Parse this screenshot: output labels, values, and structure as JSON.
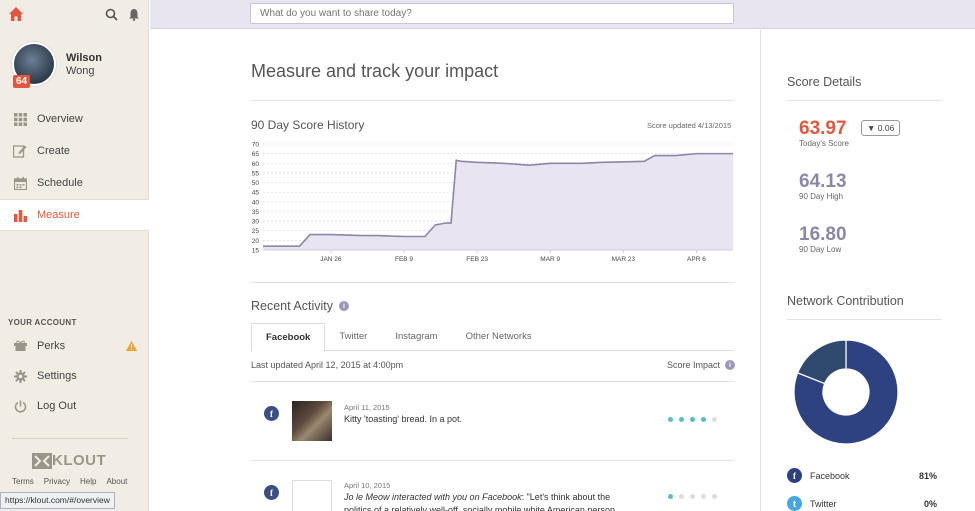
{
  "colors": {
    "accent": "#e2583e",
    "chart_fill": "#e5e1f0",
    "chart_line": "#8d87a6",
    "score_muted": "#8d87a6",
    "facebook": "#2e4282",
    "twitter": "#47a6e0",
    "impact_dot": "#53c0c2"
  },
  "sidebar": {
    "user": {
      "first_name": "Wilson",
      "last_name": "Wong",
      "score_badge": "64"
    },
    "nav": [
      {
        "label": "Overview",
        "icon": "grid-icon"
      },
      {
        "label": "Create",
        "icon": "pencil-icon"
      },
      {
        "label": "Schedule",
        "icon": "calendar-icon"
      },
      {
        "label": "Measure",
        "icon": "bar-chart-icon"
      }
    ],
    "account_title": "YOUR ACCOUNT",
    "account_items": [
      {
        "label": "Perks",
        "icon": "perks-icon"
      },
      {
        "label": "Settings",
        "icon": "gear-icon"
      },
      {
        "label": "Log Out",
        "icon": "power-icon"
      }
    ],
    "logo_text": "KLOUT",
    "footer_links": [
      "Terms",
      "Privacy",
      "Help",
      "About"
    ]
  },
  "status_url": "https://klout.com/#/overview",
  "topbar": {
    "share_placeholder": "What do you want to share today?"
  },
  "main": {
    "title": "Measure and track your impact",
    "chart_title": "90 Day Score History",
    "score_updated": "Score updated 4/13/2015",
    "recent_activity_title": "Recent Activity",
    "info_glyph": "i",
    "tabs": [
      "Facebook",
      "Twitter",
      "Instagram",
      "Other Networks"
    ],
    "last_updated": "Last updated April 12, 2015 at 4:00pm",
    "score_impact_label": "Score Impact",
    "activities": [
      {
        "network_glyph": "f",
        "date": "April 11, 2015",
        "text": "Kitty 'toasting' bread. In a pot.",
        "impact": 4
      },
      {
        "network_glyph": "f",
        "date": "April 10, 2015",
        "text_em": "Jo le Meow interacted with you on Facebook",
        "text_rest": ": \"Let's think about the politics of a relatively well-off, socially mobile white American person",
        "impact": 1
      }
    ]
  },
  "score_details": {
    "title": "Score Details",
    "today": {
      "value": "63.97",
      "label": "Today's Score",
      "change": "▼ 0.06"
    },
    "high": {
      "value": "64.13",
      "label": "90 Day High"
    },
    "low": {
      "value": "16.80",
      "label": "90 Day Low"
    }
  },
  "network_contribution": {
    "title": "Network Contribution",
    "items": [
      {
        "name": "Facebook",
        "pct": "81%",
        "glyph": "f"
      },
      {
        "name": "Twitter",
        "pct": "0%",
        "glyph": "t"
      }
    ]
  },
  "chart_data": {
    "type": "area",
    "ylim": [
      15,
      70
    ],
    "yticks": [
      15,
      20,
      25,
      30,
      35,
      40,
      45,
      50,
      55,
      60,
      65,
      70
    ],
    "xlim": [
      "2015-01-13",
      "2015-04-13"
    ],
    "xtick_labels": [
      "JAN 26",
      "FEB 9",
      "FEB 23",
      "MAR 9",
      "MAR 23",
      "APR 6"
    ],
    "xtick_dates": [
      "2015-01-26",
      "2015-02-09",
      "2015-02-23",
      "2015-03-09",
      "2015-03-23",
      "2015-04-06"
    ],
    "series": [
      {
        "x": [
          "2015-01-13",
          "2015-01-17",
          "2015-01-20",
          "2015-01-22",
          "2015-01-26",
          "2015-02-01",
          "2015-02-04",
          "2015-02-09",
          "2015-02-13",
          "2015-02-15",
          "2015-02-17",
          "2015-02-18",
          "2015-02-19",
          "2015-02-20",
          "2015-02-23",
          "2015-02-28",
          "2015-03-05",
          "2015-03-09",
          "2015-03-15",
          "2015-03-19",
          "2015-03-27",
          "2015-03-29",
          "2015-04-02",
          "2015-04-06",
          "2015-04-13"
        ],
        "y": [
          17.0,
          17.0,
          17.0,
          23.0,
          23.0,
          22.5,
          22.5,
          22.0,
          22.0,
          28.0,
          29.0,
          29.0,
          61.5,
          61.0,
          60.5,
          60.0,
          59.0,
          60.0,
          60.0,
          60.5,
          61.0,
          64.0,
          64.0,
          65.0,
          65.0
        ]
      }
    ]
  },
  "donut_data": {
    "type": "pie",
    "slices": [
      {
        "name": "Facebook",
        "value": 81,
        "color": "#2e4282"
      },
      {
        "name": "Other",
        "value": 19,
        "color": "#304a6e"
      }
    ]
  }
}
